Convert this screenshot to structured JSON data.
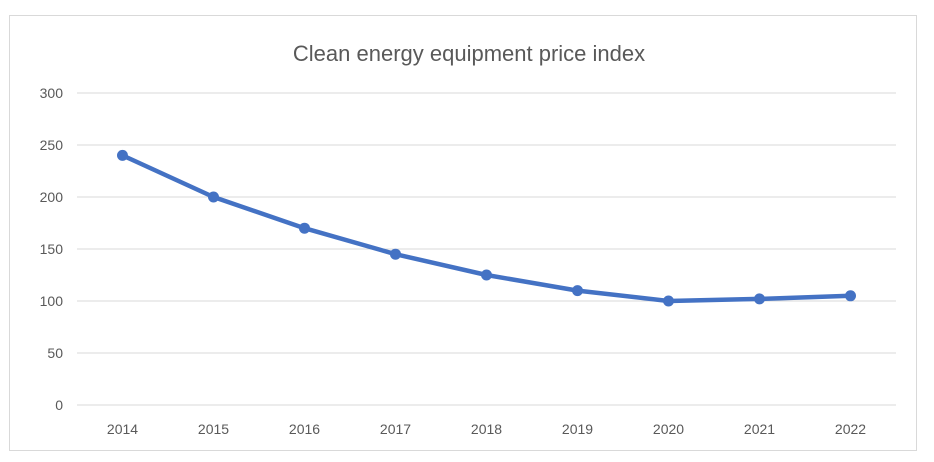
{
  "chart_data": {
    "type": "line",
    "title": "Clean energy equipment price index",
    "xlabel": "",
    "ylabel": "",
    "categories": [
      "2014",
      "2015",
      "2016",
      "2017",
      "2018",
      "2019",
      "2020",
      "2021",
      "2022"
    ],
    "series": [
      {
        "values": [
          240,
          200,
          170,
          145,
          125,
          110,
          100,
          102,
          105
        ],
        "color": "#4472c4"
      }
    ],
    "ylim": [
      0,
      300
    ],
    "yticks": [
      0,
      50,
      100,
      150,
      200,
      250,
      300
    ],
    "grid": true,
    "legend": "none",
    "markers": true
  }
}
